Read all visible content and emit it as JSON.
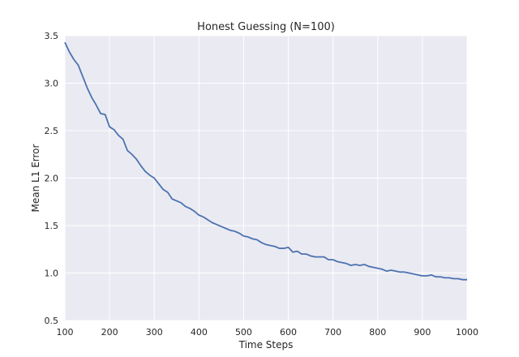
{
  "chart_data": {
    "type": "line",
    "title": "Honest Guessing (N=100)",
    "xlabel": "Time Steps",
    "ylabel": "Mean L1 Error",
    "xlim": [
      100,
      1000
    ],
    "ylim": [
      0.5,
      3.5
    ],
    "grid": true,
    "x_ticks": [
      100,
      200,
      300,
      400,
      500,
      600,
      700,
      800,
      900,
      1000
    ],
    "y_ticks": [
      "0.5",
      "1.0",
      "1.5",
      "2.0",
      "2.5",
      "3.0",
      "3.5"
    ],
    "colors": {
      "background": "#eaeaf2",
      "grid": "#ffffff",
      "line": "#4c72b0"
    },
    "series": [
      {
        "x": [
          100,
          110,
          120,
          130,
          140,
          150,
          160,
          170,
          180,
          190,
          200,
          210,
          220,
          230,
          240,
          250,
          260,
          270,
          280,
          290,
          300,
          310,
          320,
          330,
          340,
          350,
          360,
          370,
          380,
          390,
          400,
          410,
          420,
          430,
          440,
          450,
          460,
          470,
          480,
          490,
          500,
          510,
          520,
          530,
          540,
          550,
          560,
          570,
          580,
          590,
          600,
          610,
          620,
          630,
          640,
          650,
          660,
          670,
          680,
          690,
          700,
          710,
          720,
          730,
          740,
          750,
          760,
          770,
          780,
          790,
          800,
          810,
          820,
          830,
          840,
          850,
          860,
          870,
          880,
          890,
          900,
          910,
          920,
          930,
          940,
          950,
          960,
          970,
          980,
          990,
          1000
        ],
        "y": [
          3.43,
          3.33,
          3.25,
          3.19,
          3.07,
          2.95,
          2.85,
          2.77,
          2.68,
          2.67,
          2.54,
          2.51,
          2.45,
          2.41,
          2.29,
          2.25,
          2.2,
          2.13,
          2.07,
          2.03,
          2.0,
          1.94,
          1.88,
          1.85,
          1.78,
          1.76,
          1.74,
          1.7,
          1.68,
          1.65,
          1.61,
          1.59,
          1.56,
          1.53,
          1.51,
          1.49,
          1.47,
          1.45,
          1.44,
          1.42,
          1.39,
          1.38,
          1.36,
          1.35,
          1.32,
          1.3,
          1.29,
          1.28,
          1.26,
          1.26,
          1.27,
          1.22,
          1.23,
          1.2,
          1.2,
          1.18,
          1.17,
          1.17,
          1.17,
          1.14,
          1.14,
          1.12,
          1.11,
          1.1,
          1.08,
          1.09,
          1.08,
          1.09,
          1.07,
          1.06,
          1.05,
          1.04,
          1.02,
          1.03,
          1.02,
          1.01,
          1.01,
          1.0,
          0.99,
          0.98,
          0.97,
          0.97,
          0.98,
          0.96,
          0.96,
          0.95,
          0.95,
          0.94,
          0.94,
          0.93,
          0.93
        ]
      }
    ]
  }
}
